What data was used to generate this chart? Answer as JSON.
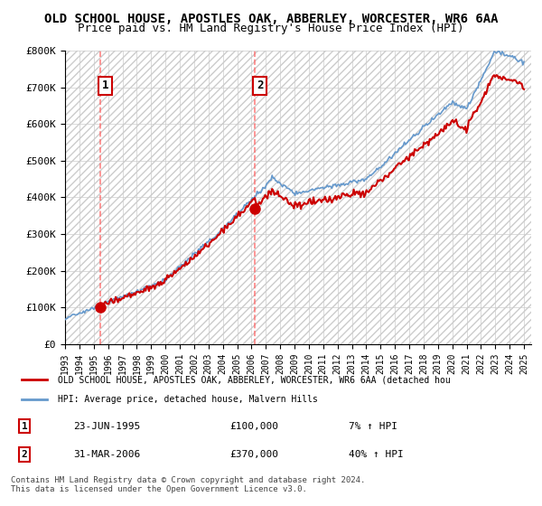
{
  "title": "OLD SCHOOL HOUSE, APOSTLES OAK, ABBERLEY, WORCESTER, WR6 6AA",
  "subtitle": "Price paid vs. HM Land Registry's House Price Index (HPI)",
  "ylabel": "",
  "ylim": [
    0,
    800000
  ],
  "yticks": [
    0,
    100000,
    200000,
    300000,
    400000,
    500000,
    600000,
    700000,
    800000
  ],
  "ytick_labels": [
    "£0",
    "£100K",
    "£200K",
    "£300K",
    "£400K",
    "£500K",
    "£600K",
    "£700K",
    "£800K"
  ],
  "xlim_start": 1993.0,
  "xlim_end": 2025.5,
  "sale1_x": 1995.478,
  "sale1_y": 100000,
  "sale1_label": "1",
  "sale2_x": 2006.247,
  "sale2_y": 370000,
  "sale2_label": "2",
  "property_color": "#cc0000",
  "hpi_color": "#6699cc",
  "legend_property": "OLD SCHOOL HOUSE, APOSTLES OAK, ABBERLEY, WORCESTER, WR6 6AA (detached hou",
  "legend_hpi": "HPI: Average price, detached house, Malvern Hills",
  "annotation1_date": "23-JUN-1995",
  "annotation1_price": "£100,000",
  "annotation1_hpi": "7% ↑ HPI",
  "annotation2_date": "31-MAR-2006",
  "annotation2_price": "£370,000",
  "annotation2_hpi": "40% ↑ HPI",
  "footer": "Contains HM Land Registry data © Crown copyright and database right 2024.\nThis data is licensed under the Open Government Licence v3.0.",
  "background_hatch_color": "#e8e8e8",
  "grid_color": "#cccccc",
  "title_fontsize": 10,
  "subtitle_fontsize": 9
}
